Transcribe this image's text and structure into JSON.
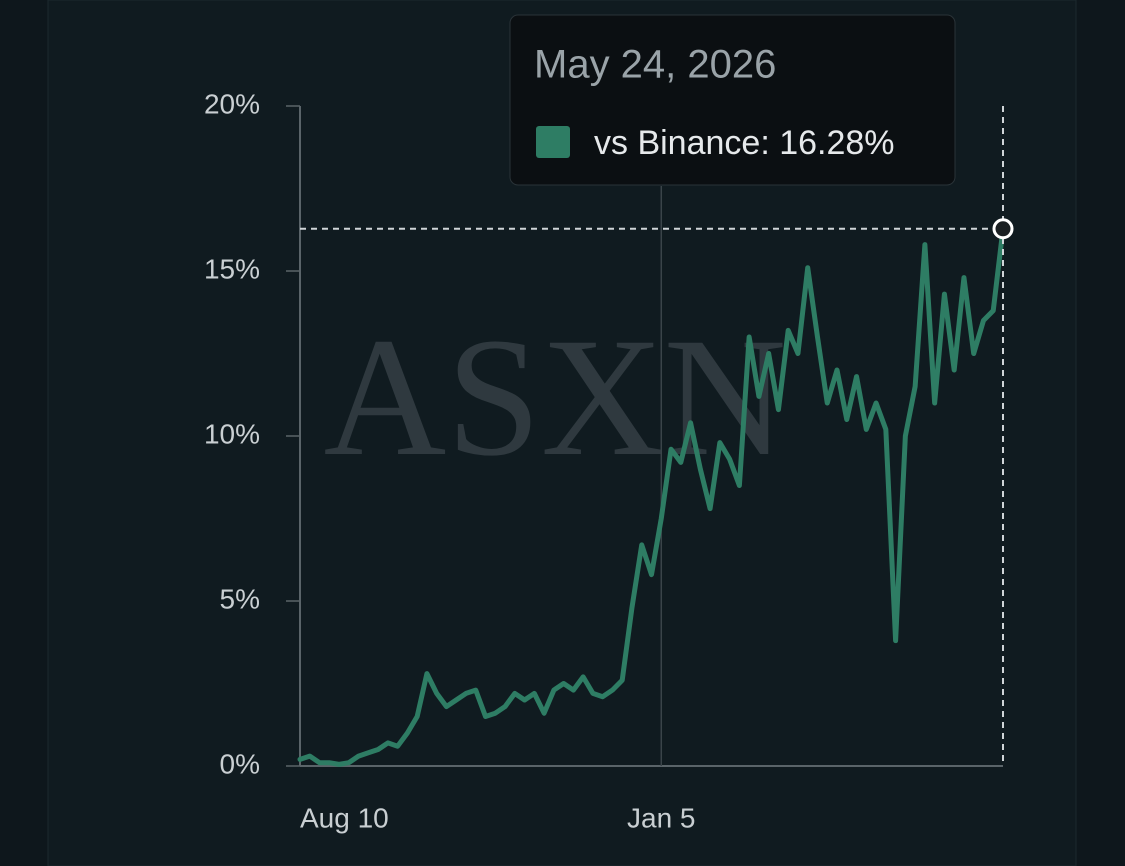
{
  "chart_data": {
    "type": "line",
    "watermark": "ASXN",
    "categories": [
      "Aug 10",
      null,
      null,
      null,
      null,
      null,
      null,
      null,
      null,
      null,
      null,
      null,
      null,
      null,
      null,
      null,
      null,
      null,
      null,
      null,
      null,
      null,
      null,
      null,
      null,
      null,
      null,
      null,
      null,
      null,
      null,
      null,
      null,
      null,
      null,
      null,
      null,
      "Jan 5",
      null,
      null,
      null,
      null,
      null,
      null,
      null,
      null,
      null,
      null,
      null,
      null,
      null,
      null,
      null,
      null,
      null,
      null,
      null,
      null,
      null,
      null,
      null,
      null,
      null,
      null,
      null,
      null,
      null,
      null,
      null,
      null,
      null,
      null,
      null
    ],
    "series": [
      {
        "name": "vs Binance",
        "color": "#2e7d64",
        "values": [
          0.2,
          0.3,
          0.1,
          0.1,
          0.05,
          0.1,
          0.3,
          0.4,
          0.5,
          0.7,
          0.6,
          1.0,
          1.5,
          2.8,
          2.2,
          1.8,
          2.0,
          2.2,
          2.3,
          1.5,
          1.6,
          1.8,
          2.2,
          2.0,
          2.2,
          1.6,
          2.3,
          2.5,
          2.3,
          2.7,
          2.2,
          2.1,
          2.3,
          2.6,
          4.8,
          6.7,
          5.8,
          7.5,
          9.6,
          9.2,
          10.4,
          9.0,
          7.8,
          9.8,
          9.3,
          8.5,
          13.0,
          11.2,
          12.5,
          10.8,
          13.2,
          12.5,
          15.1,
          13.0,
          11.0,
          12.0,
          10.5,
          11.8,
          10.2,
          11.0,
          10.2,
          3.8,
          10.0,
          11.5,
          15.8,
          11.0,
          14.3,
          12.0,
          14.8,
          12.5,
          13.5,
          13.8,
          16.28
        ]
      }
    ],
    "ylim": [
      0,
      20
    ],
    "yticks": [
      {
        "value": 0,
        "label": "0%"
      },
      {
        "value": 5,
        "label": "5%"
      },
      {
        "value": 10,
        "label": "10%"
      },
      {
        "value": 15,
        "label": "15%"
      },
      {
        "value": 20,
        "label": "20%"
      }
    ],
    "tooltip": {
      "date": "May 24, 2026",
      "label": "vs Binance: 16.28%"
    }
  }
}
